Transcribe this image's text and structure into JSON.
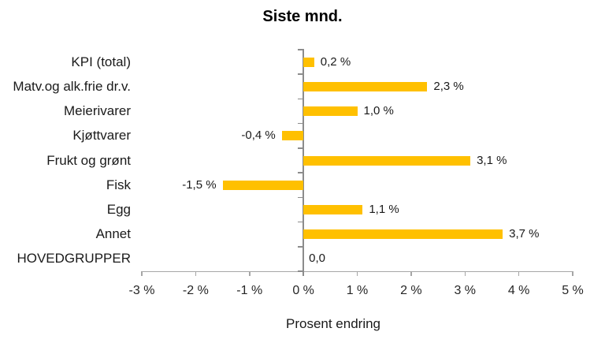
{
  "chart_data": {
    "type": "bar",
    "orientation": "horizontal",
    "title": "Siste mnd.",
    "xlabel": "Prosent endring",
    "ylabel": "",
    "xlim": [
      -3,
      5
    ],
    "grid": false,
    "legend": null,
    "categories": [
      "KPI (total)",
      "Matv.og alk.frie dr.v.",
      "Meierivarer",
      "Kjøttvarer",
      "Frukt og grønt",
      "Fisk",
      "Egg",
      "Annet",
      "HOVEDGRUPPER"
    ],
    "values": [
      0.2,
      2.3,
      1.0,
      -0.4,
      3.1,
      -1.5,
      1.1,
      3.7,
      0.0
    ],
    "value_labels": [
      "0,2 %",
      "2,3 %",
      "1,0 %",
      "-0,4 %",
      "3,1 %",
      "-1,5 %",
      "1,1 %",
      "3,7 %",
      "0,0"
    ],
    "x_tick_labels": [
      "-3 %",
      "-2 %",
      "-1 %",
      "0 %",
      "1 %",
      "2 %",
      "3 %",
      "4 %",
      "5 %"
    ],
    "x_tick_values": [
      -3,
      -2,
      -1,
      0,
      1,
      2,
      3,
      4,
      5
    ],
    "colors": {
      "bar": "#FFC000",
      "axis": "#A6A6A6",
      "zero_line": "#8C8C8C",
      "text": "#1a1a1a"
    }
  }
}
